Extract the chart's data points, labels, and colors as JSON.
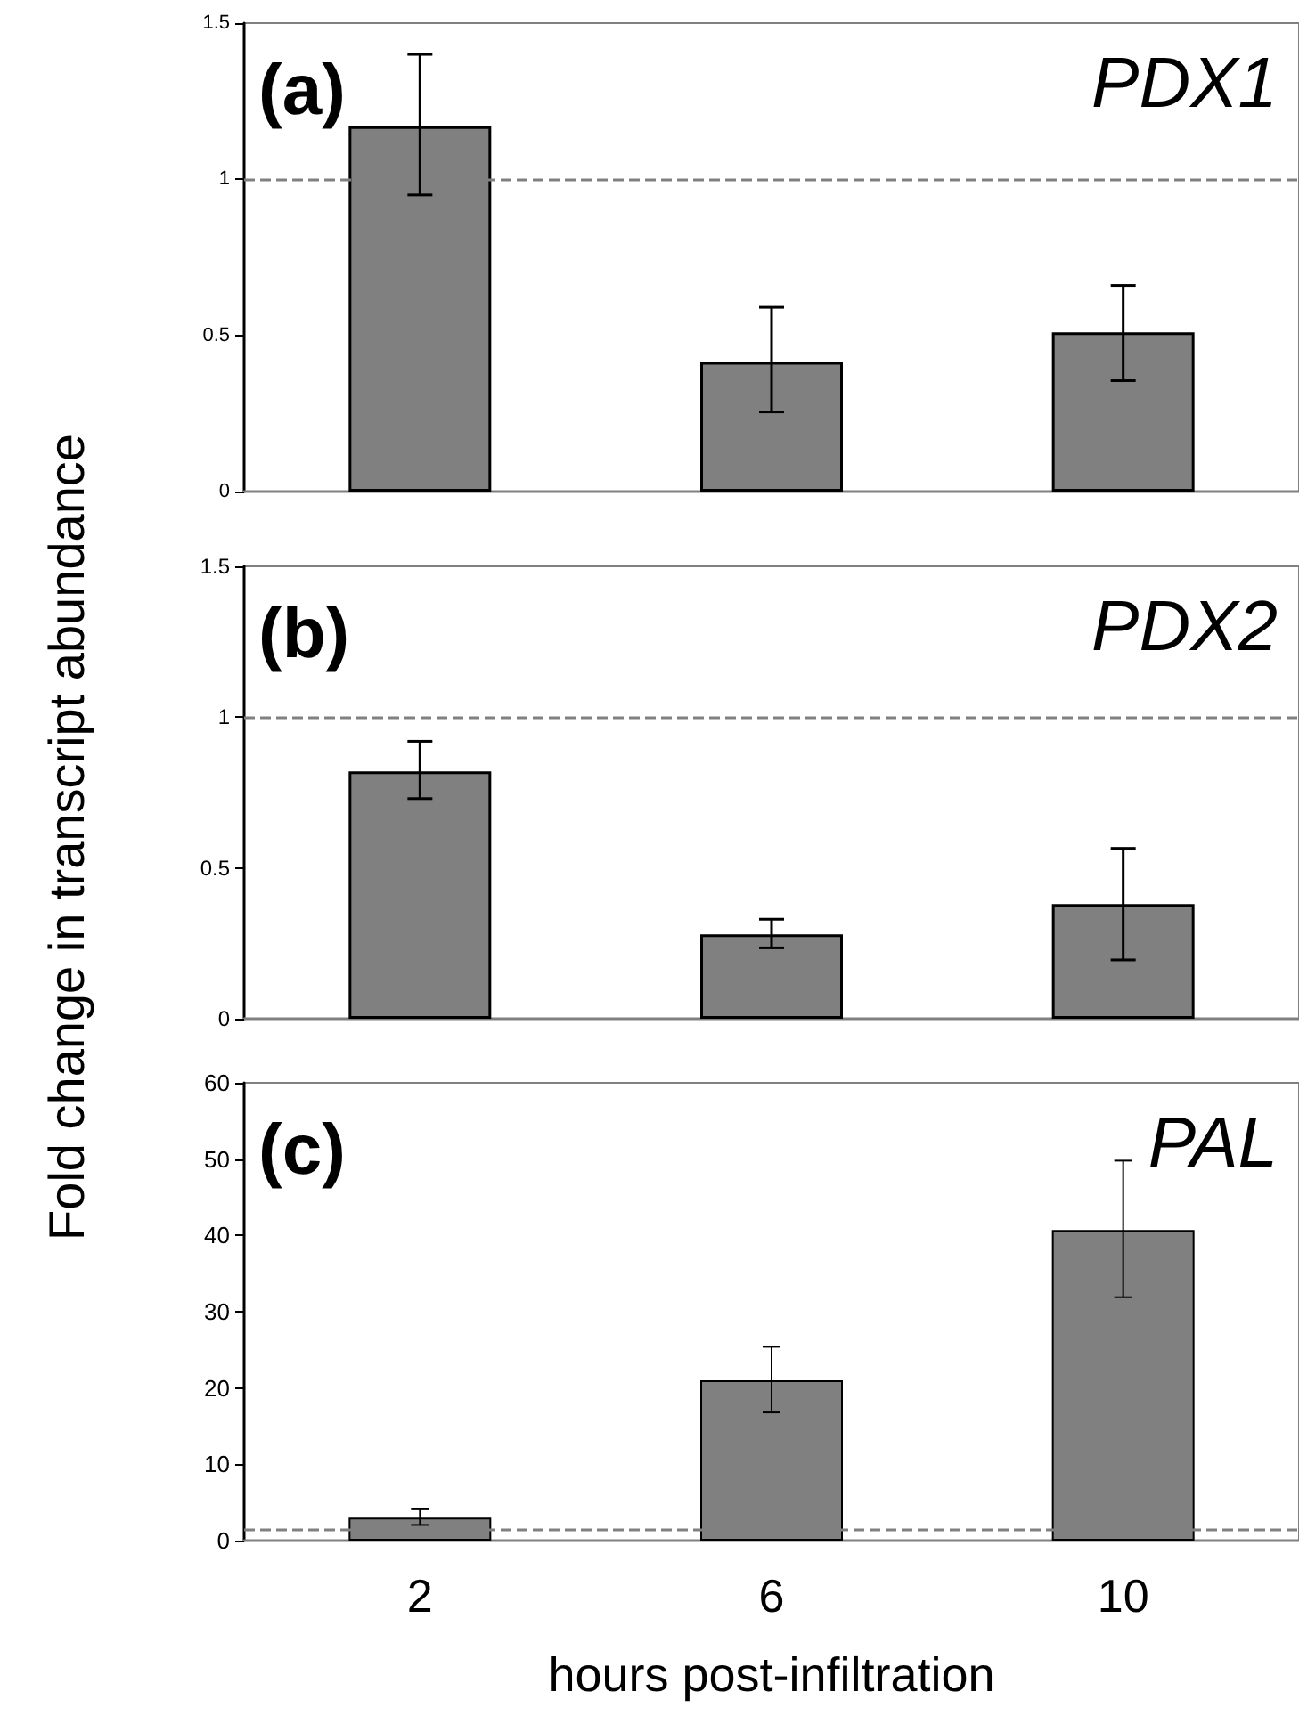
{
  "chart_data": [
    {
      "type": "bar",
      "title": "PDX1",
      "annotations": [
        "(a)"
      ],
      "categories": [
        "2",
        "6",
        "10"
      ],
      "values": [
        1.17,
        0.415,
        0.51
      ],
      "errors": [
        [
          0.95,
          1.4
        ],
        [
          0.255,
          0.59
        ],
        [
          0.355,
          0.66
        ]
      ],
      "color": "#808080",
      "ylim": [
        0,
        1.5
      ],
      "yticks": [
        0,
        0.5,
        1,
        1.5
      ],
      "ref_lines": [
        {
          "axis": "y",
          "value": 1,
          "line_style": "dashed",
          "color": "#808080"
        }
      ],
      "tick_labels": "y"
    },
    {
      "type": "bar",
      "title": "PDX2",
      "annotations": [
        "(b)"
      ],
      "ylabel": "Fold change in transcript abundance",
      "categories": [
        "2",
        "6",
        "10"
      ],
      "values": [
        0.82,
        0.28,
        0.38
      ],
      "errors": [
        [
          0.73,
          0.92
        ],
        [
          0.235,
          0.33
        ],
        [
          0.195,
          0.565
        ]
      ],
      "color": "#808080",
      "ylim": [
        0,
        1.5
      ],
      "yticks": [
        0,
        0.5,
        1,
        1.5
      ],
      "ref_lines": [
        {
          "axis": "y",
          "value": 1,
          "line_style": "dashed",
          "color": "#808080"
        }
      ],
      "tick_labels": "y"
    },
    {
      "type": "bar",
      "title": "PAL",
      "annotations": [
        "(c)"
      ],
      "xlabel": "hours post-infiltration",
      "categories": [
        "2",
        "6",
        "10"
      ],
      "values": [
        3.0,
        21,
        40.7
      ],
      "errors": [
        [
          2.05,
          4.1
        ],
        [
          16.8,
          25.4
        ],
        [
          31.9,
          49.8
        ]
      ],
      "color": "#808080",
      "ylim": [
        0,
        60
      ],
      "yticks": [
        0,
        10,
        20,
        30,
        40,
        50,
        60
      ],
      "ref_lines": [
        {
          "axis": "y",
          "value": 1.4,
          "line_style": "dashed",
          "color": "#808080"
        }
      ]
    }
  ]
}
